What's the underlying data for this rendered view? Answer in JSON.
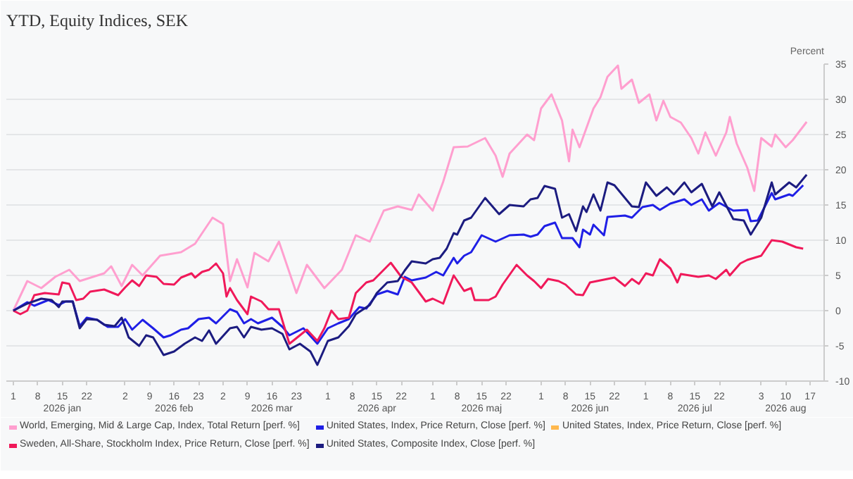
{
  "chart_data": {
    "type": "line",
    "title": "YTD, Equity Indices, SEK",
    "ylabel": "Percent",
    "xlim": [
      "2025-12-30",
      "2026-08-21"
    ],
    "ylim": [
      -10,
      35
    ],
    "yticks": [
      -10,
      -5,
      0,
      5,
      10,
      15,
      20,
      25,
      30,
      35
    ],
    "xticks": [
      {
        "value": "2026-01-01",
        "label": "1"
      },
      {
        "value": "2026-01-08",
        "label": "8"
      },
      {
        "value": "2026-01-15",
        "label": "15\n2026 jan"
      },
      {
        "value": "2026-01-22",
        "label": "22"
      },
      {
        "value": "2026-02-02",
        "label": "2"
      },
      {
        "value": "2026-02-09",
        "label": "9"
      },
      {
        "value": "2026-02-16",
        "label": "16\n2026 feb"
      },
      {
        "value": "2026-02-23",
        "label": "23"
      },
      {
        "value": "2026-03-02",
        "label": "2"
      },
      {
        "value": "2026-03-09",
        "label": "9"
      },
      {
        "value": "2026-03-16",
        "label": "16\n2026 mar"
      },
      {
        "value": "2026-03-23",
        "label": "23"
      },
      {
        "value": "2026-04-01",
        "label": "1"
      },
      {
        "value": "2026-04-08",
        "label": "8"
      },
      {
        "value": "2026-04-15",
        "label": "15\n2026 apr"
      },
      {
        "value": "2026-04-22",
        "label": "22"
      },
      {
        "value": "2026-05-01",
        "label": "1"
      },
      {
        "value": "2026-05-08",
        "label": "8"
      },
      {
        "value": "2026-05-15",
        "label": "15\n2026 maj"
      },
      {
        "value": "2026-05-22",
        "label": "22"
      },
      {
        "value": "2026-06-01",
        "label": "1"
      },
      {
        "value": "2026-06-08",
        "label": "8"
      },
      {
        "value": "2026-06-15",
        "label": "15\n2026 jun"
      },
      {
        "value": "2026-06-22",
        "label": "22"
      },
      {
        "value": "2026-07-01",
        "label": "1"
      },
      {
        "value": "2026-07-08",
        "label": "8"
      },
      {
        "value": "2026-07-15",
        "label": "15\n2026 jul"
      },
      {
        "value": "2026-07-22",
        "label": "22"
      },
      {
        "value": "2026-08-03",
        "label": "3"
      },
      {
        "value": "2026-08-10",
        "label": "10\n2026 aug"
      },
      {
        "value": "2026-08-17",
        "label": "17"
      }
    ],
    "grid": "y",
    "legend": "bottom",
    "line_style": "solid",
    "marker": "none",
    "series": [
      {
        "name": "World, Emerging, Mid & Large Cap, Index, Total Return [perf. %]",
        "color": "#ff9fcf",
        "x": [
          "2026-01-01",
          "2026-01-05",
          "2026-01-09",
          "2026-01-13",
          "2026-01-17",
          "2026-01-20",
          "2026-01-27",
          "2026-01-29",
          "2026-02-01",
          "2026-02-04",
          "2026-02-07",
          "2026-02-12",
          "2026-02-18",
          "2026-02-22",
          "2026-02-27",
          "2026-03-02",
          "2026-03-04",
          "2026-03-06",
          "2026-03-09",
          "2026-03-11",
          "2026-03-15",
          "2026-03-18",
          "2026-03-23",
          "2026-03-26",
          "2026-03-31",
          "2026-04-05",
          "2026-04-09",
          "2026-04-13",
          "2026-04-17",
          "2026-04-21",
          "2026-04-25",
          "2026-04-27",
          "2026-05-01",
          "2026-05-04",
          "2026-05-07",
          "2026-05-11",
          "2026-05-16",
          "2026-05-19",
          "2026-05-21",
          "2026-05-23",
          "2026-05-28",
          "2026-05-30",
          "2026-06-01",
          "2026-06-04",
          "2026-06-07",
          "2026-06-09",
          "2026-06-10",
          "2026-06-12",
          "2026-06-16",
          "2026-06-18",
          "2026-06-20",
          "2026-06-23",
          "2026-06-24",
          "2026-06-27",
          "2026-06-29",
          "2026-07-02",
          "2026-07-04",
          "2026-07-06",
          "2026-07-08",
          "2026-07-11",
          "2026-07-14",
          "2026-07-16",
          "2026-07-18",
          "2026-07-21",
          "2026-07-24",
          "2026-07-25",
          "2026-07-27",
          "2026-07-30",
          "2026-08-01",
          "2026-08-03",
          "2026-08-06",
          "2026-08-07",
          "2026-08-10",
          "2026-08-12",
          "2026-08-16"
        ],
        "values": [
          0,
          4.2,
          3.2,
          4.8,
          5.8,
          4.2,
          5.3,
          6.3,
          3.5,
          6.5,
          5,
          7.8,
          8.3,
          9.5,
          13.2,
          12.3,
          4.2,
          7.3,
          3.3,
          8.2,
          7,
          9.8,
          2.5,
          6.5,
          3.2,
          5.8,
          10.7,
          9.8,
          14.2,
          14.8,
          14.3,
          16.5,
          14.2,
          18.3,
          23.2,
          23.3,
          24.5,
          22,
          19,
          22.3,
          25,
          24.2,
          28.7,
          30.7,
          27,
          21.2,
          25.7,
          23.2,
          28.7,
          30.3,
          33.2,
          34.8,
          31.5,
          32.8,
          29.5,
          30.7,
          27,
          29.8,
          27.5,
          26.7,
          24.5,
          22.3,
          25.3,
          22,
          25.3,
          27.5,
          23.7,
          20.3,
          17,
          24.5,
          23.3,
          25,
          23.2,
          24.2,
          26.8
        ]
      },
      {
        "name": "United States, Index, Price Return, Close [perf. %]",
        "color": "#1f1fe6",
        "x": [
          "2026-01-01",
          "2026-01-05",
          "2026-01-07",
          "2026-01-11",
          "2026-01-14",
          "2026-01-16",
          "2026-01-18",
          "2026-01-20",
          "2026-01-22",
          "2026-01-25",
          "2026-01-28",
          "2026-01-31",
          "2026-02-02",
          "2026-02-04",
          "2026-02-07",
          "2026-02-10",
          "2026-02-13",
          "2026-02-15",
          "2026-02-18",
          "2026-02-20",
          "2026-02-23",
          "2026-02-26",
          "2026-02-28",
          "2026-03-04",
          "2026-03-06",
          "2026-03-08",
          "2026-03-10",
          "2026-03-12",
          "2026-03-16",
          "2026-03-19",
          "2026-03-21",
          "2026-03-25",
          "2026-03-29",
          "2026-04-01",
          "2026-04-04",
          "2026-04-07",
          "2026-04-10",
          "2026-04-12",
          "2026-04-15",
          "2026-04-18",
          "2026-04-21",
          "2026-04-23",
          "2026-04-25",
          "2026-04-29",
          "2026-05-02",
          "2026-05-04",
          "2026-05-07",
          "2026-05-08",
          "2026-05-10",
          "2026-05-12",
          "2026-05-15",
          "2026-05-19",
          "2026-05-23",
          "2026-05-27",
          "2026-05-29",
          "2026-05-31",
          "2026-06-02",
          "2026-06-05",
          "2026-06-07",
          "2026-06-10",
          "2026-06-12",
          "2026-06-13",
          "2026-06-15",
          "2026-06-16",
          "2026-06-19",
          "2026-06-20",
          "2026-06-25",
          "2026-06-27",
          "2026-06-30",
          "2026-07-03",
          "2026-07-05",
          "2026-07-08",
          "2026-07-12",
          "2026-07-14",
          "2026-07-17",
          "2026-07-19",
          "2026-07-22",
          "2026-07-26",
          "2026-07-30",
          "2026-07-31",
          "2026-08-02",
          "2026-08-06",
          "2026-08-07",
          "2026-08-11",
          "2026-08-12",
          "2026-08-15"
        ],
        "values": [
          0,
          1.2,
          0.7,
          1.5,
          0.8,
          1.3,
          1.3,
          -2.2,
          -1,
          -1.3,
          -2.3,
          -2.3,
          -1.2,
          -2.7,
          -1.3,
          -2.5,
          -3.8,
          -3.5,
          -2.7,
          -2.5,
          -1.2,
          -1,
          -1.8,
          0.2,
          -0.2,
          -1.8,
          -1.2,
          -1.8,
          -1,
          -2.3,
          -3.5,
          -2.5,
          -4.7,
          -2.5,
          -1.8,
          -1.2,
          0.5,
          0.3,
          2.3,
          2.8,
          2.3,
          4.8,
          4.3,
          4.7,
          5.5,
          5,
          7.5,
          6.7,
          7.8,
          8.3,
          10.7,
          9.8,
          10.7,
          10.8,
          10.5,
          10.8,
          12,
          12.5,
          10.3,
          10.3,
          9,
          11.5,
          10.8,
          12.2,
          10.7,
          13.3,
          13.5,
          13.2,
          14.7,
          15,
          14.3,
          15.2,
          15.8,
          15,
          15.8,
          14.2,
          15.3,
          14.2,
          14.3,
          12.7,
          12.8,
          16.7,
          15.8,
          16.5,
          16.3,
          17.8
        ]
      },
      {
        "name": "United States, Index, Price Return, Close [perf. %]",
        "color": "#ffb84d"
      },
      {
        "name": "Sweden, All-Share, Stockholm Index, Price Return, Close [perf. %]",
        "color": "#f0195a",
        "x": [
          "2026-01-01",
          "2026-01-03",
          "2026-01-05",
          "2026-01-07",
          "2026-01-10",
          "2026-01-14",
          "2026-01-15",
          "2026-01-17",
          "2026-01-19",
          "2026-01-21",
          "2026-01-23",
          "2026-01-27",
          "2026-01-31",
          "2026-02-02",
          "2026-02-04",
          "2026-02-06",
          "2026-02-08",
          "2026-02-11",
          "2026-02-13",
          "2026-02-16",
          "2026-02-18",
          "2026-02-21",
          "2026-02-22",
          "2026-02-24",
          "2026-02-26",
          "2026-02-28",
          "2026-03-02",
          "2026-03-03",
          "2026-03-04",
          "2026-03-06",
          "2026-03-09",
          "2026-03-10",
          "2026-03-13",
          "2026-03-15",
          "2026-03-18",
          "2026-03-21",
          "2026-03-26",
          "2026-03-29",
          "2026-03-31",
          "2026-04-02",
          "2026-04-04",
          "2026-04-07",
          "2026-04-09",
          "2026-04-12",
          "2026-04-14",
          "2026-04-16",
          "2026-04-19",
          "2026-04-22",
          "2026-04-25",
          "2026-04-29",
          "2026-05-01",
          "2026-05-04",
          "2026-05-07",
          "2026-05-10",
          "2026-05-12",
          "2026-05-13",
          "2026-05-17",
          "2026-05-19",
          "2026-05-21",
          "2026-05-25",
          "2026-05-28",
          "2026-05-30",
          "2026-06-01",
          "2026-06-03",
          "2026-06-06",
          "2026-06-08",
          "2026-06-11",
          "2026-06-13",
          "2026-06-15",
          "2026-06-18",
          "2026-06-22",
          "2026-06-25",
          "2026-06-27",
          "2026-06-29",
          "2026-07-01",
          "2026-07-03",
          "2026-07-05",
          "2026-07-08",
          "2026-07-10",
          "2026-07-11",
          "2026-07-16",
          "2026-07-19",
          "2026-07-21",
          "2026-07-24",
          "2026-07-25",
          "2026-07-28",
          "2026-07-30",
          "2026-08-03",
          "2026-08-06",
          "2026-08-09",
          "2026-08-13",
          "2026-08-15"
        ],
        "values": [
          0,
          -0.5,
          0,
          2.2,
          2.5,
          2.3,
          4,
          3.8,
          1.5,
          1.7,
          2.7,
          3,
          2.2,
          3.3,
          4.3,
          3.5,
          5,
          4.8,
          3.8,
          3.7,
          4.7,
          5.3,
          4.7,
          5.5,
          5.8,
          6.7,
          5.3,
          2,
          3.2,
          1.5,
          -0.5,
          2,
          1.3,
          0.2,
          0.2,
          -4.7,
          -2.7,
          -4.3,
          -2.5,
          0,
          -1.2,
          -1,
          2.5,
          4,
          4.3,
          5.3,
          6.8,
          4.8,
          4,
          1.3,
          1.7,
          1,
          5,
          2.8,
          3.2,
          1.5,
          1.5,
          2,
          3.7,
          6.5,
          5,
          4.2,
          3.2,
          4.5,
          4.2,
          3.7,
          2.3,
          2.2,
          4,
          4.3,
          4.7,
          3.5,
          4.5,
          3.8,
          5.3,
          5,
          7.3,
          6,
          4,
          5.2,
          4.8,
          5,
          4.5,
          5.8,
          5,
          6.7,
          7.2,
          7.8,
          10,
          9.8,
          9,
          8.8
        ]
      },
      {
        "name": "United States, Composite Index, Close [perf. %]",
        "color": "#1c1c80",
        "x": [
          "2026-01-01",
          "2026-01-05",
          "2026-01-09",
          "2026-01-12",
          "2026-01-14",
          "2026-01-15",
          "2026-01-18",
          "2026-01-20",
          "2026-01-22",
          "2026-01-25",
          "2026-01-27",
          "2026-01-30",
          "2026-02-01",
          "2026-02-03",
          "2026-02-06",
          "2026-02-08",
          "2026-02-10",
          "2026-02-13",
          "2026-02-16",
          "2026-02-19",
          "2026-02-22",
          "2026-02-24",
          "2026-02-26",
          "2026-02-28",
          "2026-03-04",
          "2026-03-06",
          "2026-03-08",
          "2026-03-10",
          "2026-03-13",
          "2026-03-16",
          "2026-03-19",
          "2026-03-21",
          "2026-03-24",
          "2026-03-27",
          "2026-03-29",
          "2026-04-01",
          "2026-04-04",
          "2026-04-07",
          "2026-04-09",
          "2026-04-13",
          "2026-04-15",
          "2026-04-18",
          "2026-04-21",
          "2026-04-23",
          "2026-04-25",
          "2026-04-29",
          "2026-05-01",
          "2026-05-03",
          "2026-05-05",
          "2026-05-07",
          "2026-05-08",
          "2026-05-10",
          "2026-05-12",
          "2026-05-16",
          "2026-05-20",
          "2026-05-23",
          "2026-05-27",
          "2026-05-29",
          "2026-05-31",
          "2026-06-02",
          "2026-06-05",
          "2026-06-07",
          "2026-06-09",
          "2026-06-11",
          "2026-06-13",
          "2026-06-14",
          "2026-06-16",
          "2026-06-18",
          "2026-06-20",
          "2026-06-22",
          "2026-06-25",
          "2026-06-27",
          "2026-06-29",
          "2026-07-01",
          "2026-07-04",
          "2026-07-07",
          "2026-07-09",
          "2026-07-12",
          "2026-07-14",
          "2026-07-17",
          "2026-07-20",
          "2026-07-22",
          "2026-07-26",
          "2026-07-29",
          "2026-07-31",
          "2026-08-03",
          "2026-08-06",
          "2026-08-07",
          "2026-08-11",
          "2026-08-13",
          "2026-08-16"
        ],
        "values": [
          0,
          1,
          1.7,
          1.5,
          0.5,
          1.3,
          1.3,
          -2.5,
          -1.2,
          -1.3,
          -2,
          -2.2,
          -1,
          -3.8,
          -5,
          -3.5,
          -3.8,
          -6.3,
          -5.8,
          -4.7,
          -3.8,
          -4.3,
          -2.8,
          -4.7,
          -2.5,
          -2.3,
          -3.8,
          -2.3,
          -2.7,
          -2.5,
          -3.3,
          -5.5,
          -4.7,
          -5.8,
          -7.7,
          -4.3,
          -3.8,
          -2.2,
          -0.5,
          0.8,
          2.5,
          4,
          4.2,
          5.7,
          7,
          6.7,
          7.3,
          7.5,
          8.8,
          11,
          10.8,
          12.8,
          13.2,
          16,
          13.7,
          15,
          14.8,
          15.8,
          16,
          17.7,
          17.3,
          13.2,
          13.7,
          11.3,
          14.8,
          14,
          16.5,
          14.2,
          18.2,
          17.8,
          16,
          14.8,
          14.7,
          18.2,
          16.3,
          17.5,
          16.5,
          18.2,
          16.8,
          18,
          14.8,
          16.8,
          13,
          12.8,
          10.8,
          13.2,
          18.2,
          16.5,
          18.2,
          17.5,
          19.3
        ]
      }
    ]
  }
}
